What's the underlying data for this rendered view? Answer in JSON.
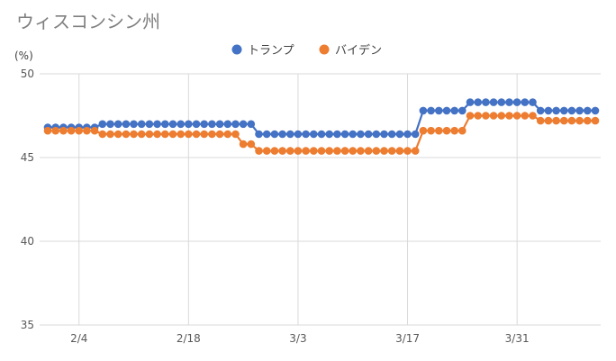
{
  "chart_data": {
    "type": "line",
    "title": "ウィスコンシン州",
    "ylabel": "(%)",
    "xlabel": "",
    "ylim": [
      35,
      50
    ],
    "yticks": [
      35,
      40,
      45,
      50
    ],
    "x_start": "1/31",
    "x_end": "4/10",
    "x_tick_labels": [
      "2/4",
      "2/18",
      "3/3",
      "3/17",
      "3/31"
    ],
    "grid": true,
    "legend_position": "top",
    "series": [
      {
        "name": "トランプ",
        "color": "#4472C4",
        "segments": [
          {
            "from": "1/31",
            "to": "2/6",
            "value": 46.8
          },
          {
            "from": "2/7",
            "to": "2/26",
            "value": 47.0
          },
          {
            "from": "2/27",
            "to": "3/18",
            "value": 46.4
          },
          {
            "from": "3/19",
            "to": "3/24",
            "value": 47.8
          },
          {
            "from": "3/25",
            "to": "4/2",
            "value": 48.3
          },
          {
            "from": "4/3",
            "to": "4/10",
            "value": 47.8
          }
        ]
      },
      {
        "name": "バイデン",
        "color": "#ED7D31",
        "segments": [
          {
            "from": "1/31",
            "to": "2/6",
            "value": 46.6
          },
          {
            "from": "2/7",
            "to": "2/24",
            "value": 46.4
          },
          {
            "from": "2/25",
            "to": "2/26",
            "value": 45.8
          },
          {
            "from": "2/27",
            "to": "3/18",
            "value": 45.4
          },
          {
            "from": "3/19",
            "to": "3/24",
            "value": 46.6
          },
          {
            "from": "3/25",
            "to": "4/2",
            "value": 47.5
          },
          {
            "from": "4/3",
            "to": "4/10",
            "value": 47.2
          }
        ]
      }
    ]
  }
}
